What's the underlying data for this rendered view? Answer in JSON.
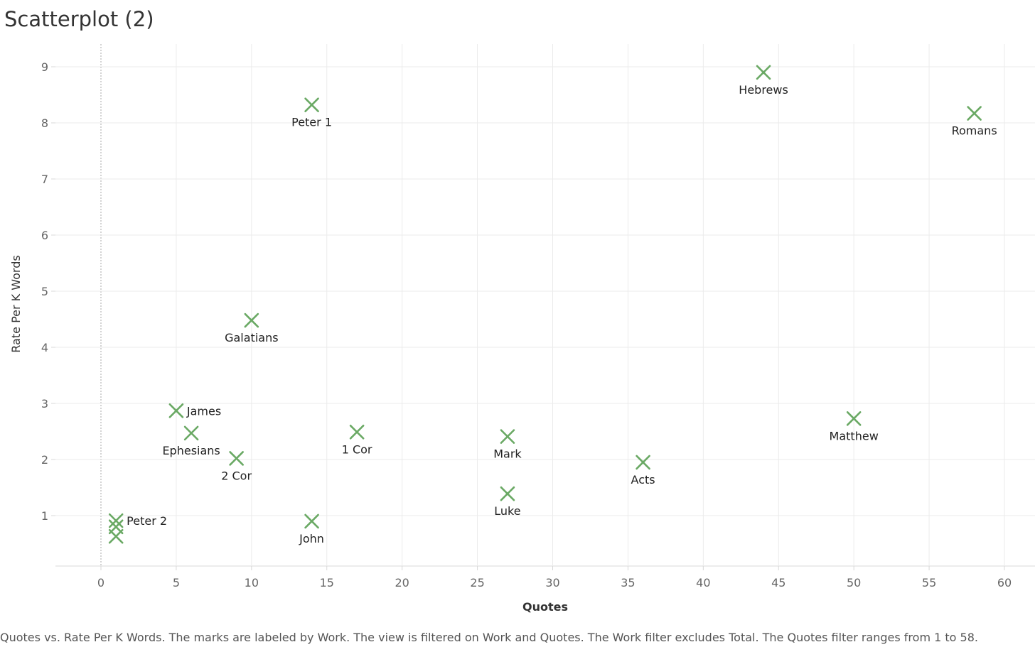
{
  "title": "Scatterplot (2)",
  "caption": "Quotes vs. Rate Per K Words.  The marks are labeled by Work. The view is filtered on Work and Quotes. The Work filter excludes Total. The Quotes filter ranges from 1 to 58.",
  "colors": {
    "mark": "#6aa964",
    "grid": "#ebebeb",
    "zero_line": "#aaaaaa"
  },
  "chart_data": {
    "type": "scatter",
    "title": "Scatterplot (2)",
    "xlabel": "Quotes",
    "ylabel": "Rate Per K Words",
    "xlim": [
      -3,
      62
    ],
    "ylim": [
      0.1,
      9.4
    ],
    "x_ticks": [
      0,
      5,
      10,
      15,
      20,
      25,
      30,
      35,
      40,
      45,
      50,
      55,
      60
    ],
    "y_ticks": [
      1,
      2,
      3,
      4,
      5,
      6,
      7,
      8,
      9
    ],
    "grid": true,
    "marker": "x",
    "points": [
      {
        "label": "Hebrews",
        "x": 44,
        "y": 8.9,
        "label_pos": "below"
      },
      {
        "label": "Romans",
        "x": 58,
        "y": 8.17,
        "label_pos": "below"
      },
      {
        "label": "Peter 1",
        "x": 14,
        "y": 8.32,
        "label_pos": "below"
      },
      {
        "label": "Galatians",
        "x": 10,
        "y": 4.48,
        "label_pos": "below"
      },
      {
        "label": "James",
        "x": 5,
        "y": 2.87,
        "label_pos": "right"
      },
      {
        "label": "Ephesians",
        "x": 6,
        "y": 2.47,
        "label_pos": "below"
      },
      {
        "label": "2 Cor",
        "x": 9,
        "y": 2.02,
        "label_pos": "below"
      },
      {
        "label": "1 Cor",
        "x": 17,
        "y": 2.49,
        "label_pos": "below"
      },
      {
        "label": "Mark",
        "x": 27,
        "y": 2.41,
        "label_pos": "below"
      },
      {
        "label": "Acts",
        "x": 36,
        "y": 1.95,
        "label_pos": "below"
      },
      {
        "label": "Matthew",
        "x": 50,
        "y": 2.73,
        "label_pos": "below"
      },
      {
        "label": "Luke",
        "x": 27,
        "y": 1.39,
        "label_pos": "below"
      },
      {
        "label": "John",
        "x": 14,
        "y": 0.9,
        "label_pos": "below"
      },
      {
        "label": "Peter 2",
        "x": 1,
        "y": 0.91,
        "label_pos": "right"
      },
      {
        "label": "",
        "x": 1,
        "y": 0.8,
        "label_pos": "none"
      },
      {
        "label": "",
        "x": 1,
        "y": 0.63,
        "label_pos": "none"
      }
    ]
  }
}
